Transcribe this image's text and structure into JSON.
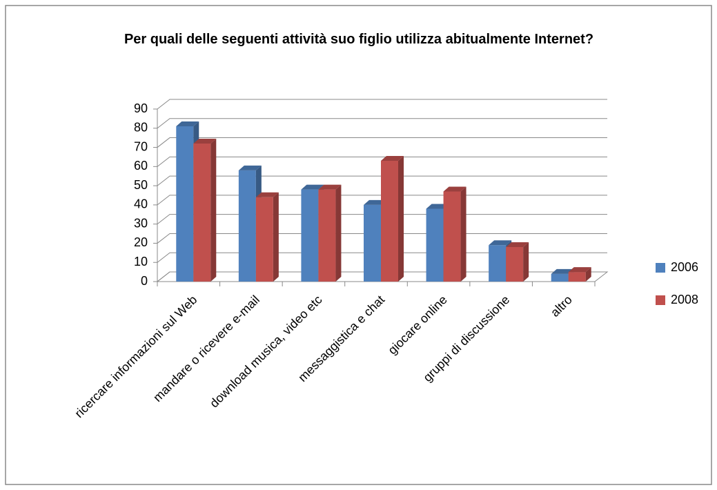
{
  "chart_data": {
    "type": "bar3d",
    "title": "Per quali delle seguenti attività suo figlio utilizza abitualmente Internet?",
    "categories": [
      "ricercare informazioni sul Web",
      "mandare o ricevere e-mail",
      "download musica, video etc",
      "messaggistica e chat",
      "giocare online",
      "gruppi di discussione",
      "altro"
    ],
    "series": [
      {
        "name": "2006",
        "color": "#4f81bd",
        "values": [
          81,
          58,
          48,
          40,
          38,
          19,
          4
        ]
      },
      {
        "name": "2008",
        "color": "#c0504d",
        "values": [
          72,
          44,
          48,
          63,
          47,
          18,
          5
        ]
      }
    ],
    "ylim": [
      0,
      90
    ],
    "yticks": [
      0,
      10,
      20,
      30,
      40,
      50,
      60,
      70,
      80,
      90
    ],
    "grid": true,
    "legend": "right"
  }
}
